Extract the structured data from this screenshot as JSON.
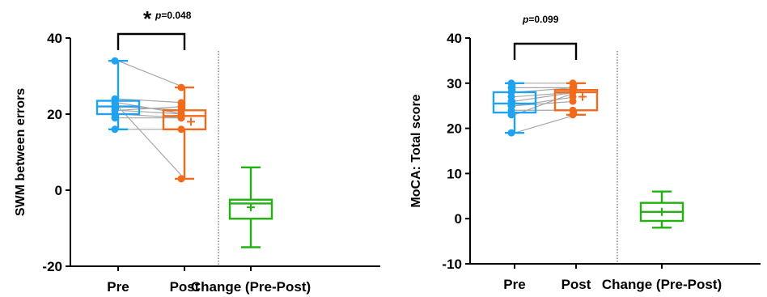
{
  "chart_data": [
    {
      "type": "box",
      "ylabel": "SWM between errors",
      "ylim": [
        -20,
        40
      ],
      "yticks": [
        -20,
        0,
        20,
        40
      ],
      "categories": [
        "Pre",
        "Post",
        "Change (Pre-Post)"
      ],
      "significance": {
        "star": "*",
        "p_prefix": "p",
        "p_value": "=0.048",
        "between": [
          "Pre",
          "Post"
        ]
      },
      "boxes": [
        {
          "category": "Pre",
          "color": "#1fa3f0",
          "min": 16,
          "q1": 20,
          "median": 22,
          "q3": 23.5,
          "max": 34,
          "mean": 22
        },
        {
          "category": "Post",
          "color": "#f26b1d",
          "min": 3,
          "q1": 16,
          "median": 19.5,
          "q3": 21,
          "max": 27,
          "mean": 18
        },
        {
          "category": "Change (Pre-Post)",
          "color": "#22b20f",
          "min": -15,
          "q1": -7.5,
          "median": -3.5,
          "q3": -2.5,
          "max": 6,
          "mean": -4.5
        }
      ],
      "pairs": {
        "pre": [
          34,
          24,
          22,
          21,
          20,
          19,
          16,
          22,
          23,
          21
        ],
        "post": [
          27,
          23,
          21,
          20,
          19,
          19,
          16,
          3,
          20,
          22
        ]
      }
    },
    {
      "type": "box",
      "ylabel": "MoCA: Total score",
      "ylim": [
        -10,
        40
      ],
      "yticks": [
        -10,
        0,
        10,
        20,
        30,
        40
      ],
      "categories": [
        "Pre",
        "Post",
        "Change (Pre-Post)"
      ],
      "significance": {
        "star": "",
        "p_prefix": "p",
        "p_value": "=0.099",
        "between": [
          "Pre",
          "Post"
        ]
      },
      "boxes": [
        {
          "category": "Pre",
          "color": "#1fa3f0",
          "min": 19,
          "q1": 23.5,
          "median": 25.5,
          "q3": 28,
          "max": 30,
          "mean": 25.5
        },
        {
          "category": "Post",
          "color": "#f26b1d",
          "min": 23,
          "q1": 24,
          "median": 28,
          "q3": 28.5,
          "max": 30,
          "mean": 27
        },
        {
          "category": "Change (Pre-Post)",
          "color": "#22b20f",
          "min": -2,
          "q1": -0.5,
          "median": 1.5,
          "q3": 3.5,
          "max": 6,
          "mean": 1.5
        }
      ],
      "pairs": {
        "pre": [
          30,
          29,
          28,
          27,
          26,
          25,
          25,
          24,
          23,
          19
        ],
        "post": [
          30,
          29,
          29,
          28,
          28,
          27,
          26,
          24,
          28,
          23
        ]
      }
    }
  ]
}
